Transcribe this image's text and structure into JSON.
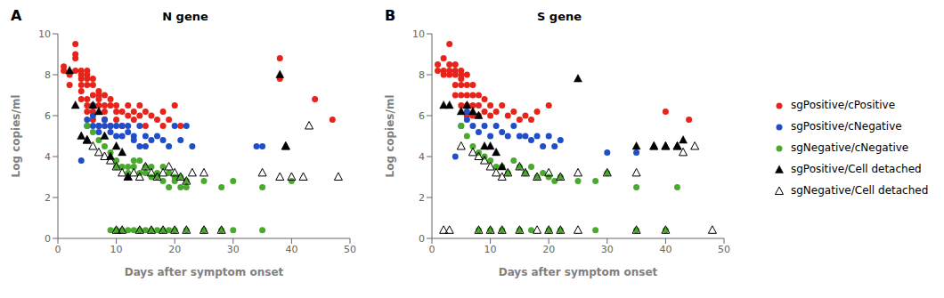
{
  "chart_data": [
    {
      "type": "scatter",
      "title": "N gene",
      "annotations": [
        "A"
      ],
      "x_label": "Days after symptom onset",
      "y_label": "Log copies/ml",
      "xlim": [
        0,
        50
      ],
      "ylim": [
        0,
        10
      ],
      "xticks": [
        0,
        10,
        20,
        30,
        40,
        50
      ],
      "yticks": [
        0,
        2,
        4,
        6,
        8,
        10
      ],
      "series": [
        {
          "name": "sgPositive/cPositive",
          "color": "#e8231a",
          "marker": "circle",
          "x": [
            1,
            1,
            2,
            2,
            2,
            3,
            3,
            3,
            3,
            4,
            4,
            4,
            4,
            4,
            4,
            5,
            5,
            5,
            5,
            5,
            5,
            5,
            6,
            6,
            6,
            6,
            6,
            6,
            7,
            7,
            7,
            7,
            7,
            8,
            8,
            8,
            8,
            9,
            9,
            9,
            10,
            10,
            10,
            11,
            11,
            12,
            12,
            13,
            13,
            14,
            14,
            15,
            15,
            16,
            17,
            18,
            18,
            19,
            20,
            21,
            38,
            38,
            44,
            47
          ],
          "values": [
            8.2,
            8.4,
            8.1,
            8.0,
            7.5,
            9.5,
            9.0,
            8.8,
            8.2,
            8.2,
            8.0,
            7.8,
            7.5,
            7.2,
            6.8,
            8.2,
            8.0,
            7.8,
            7.5,
            6.8,
            6.5,
            6.2,
            7.8,
            7.5,
            7.0,
            6.5,
            6.2,
            5.8,
            7.2,
            7.0,
            6.8,
            6.5,
            5.5,
            7.0,
            6.5,
            6.2,
            5.8,
            6.8,
            6.5,
            5.5,
            6.5,
            6.2,
            5.8,
            6.2,
            5.5,
            6.5,
            6.0,
            6.2,
            5.8,
            6.5,
            6.0,
            6.2,
            5.5,
            6.0,
            5.8,
            6.2,
            5.5,
            5.8,
            6.5,
            5.5,
            8.8,
            7.8,
            6.8,
            5.8
          ]
        },
        {
          "name": "sgPositive/cNegative",
          "color": "#1f4ec8",
          "marker": "circle",
          "x": [
            4,
            5,
            5,
            6,
            6,
            6,
            7,
            7,
            8,
            8,
            9,
            9,
            10,
            10,
            11,
            11,
            12,
            12,
            13,
            13,
            14,
            14,
            15,
            15,
            16,
            17,
            18,
            19,
            20,
            21,
            22,
            23,
            34,
            35
          ],
          "values": [
            3.8,
            5.8,
            5.5,
            6.5,
            6.0,
            5.5,
            5.5,
            5.2,
            5.8,
            5.5,
            5.5,
            5.2,
            5.5,
            5.0,
            5.5,
            5.0,
            5.5,
            5.2,
            5.0,
            4.8,
            5.5,
            4.5,
            5.0,
            4.5,
            4.8,
            5.0,
            4.8,
            4.5,
            5.5,
            4.8,
            5.5,
            4.5,
            4.5,
            4.5
          ]
        },
        {
          "name": "sgNegative/cNegative",
          "color": "#4aaa2e",
          "marker": "circle",
          "x": [
            5,
            6,
            7,
            8,
            9,
            10,
            10,
            11,
            12,
            12,
            13,
            13,
            14,
            14,
            15,
            15,
            16,
            16,
            17,
            17,
            18,
            18,
            19,
            19,
            20,
            20,
            21,
            21,
            22,
            22,
            25,
            28,
            30,
            35,
            40,
            9,
            10,
            10,
            11,
            12,
            13,
            14,
            15,
            16,
            17,
            18,
            19,
            20,
            22,
            25,
            28,
            30,
            35
          ],
          "values": [
            5.5,
            5.2,
            4.8,
            4.5,
            4.2,
            3.8,
            3.5,
            3.5,
            3.5,
            3.2,
            3.8,
            3.5,
            3.8,
            3.2,
            3.5,
            3.2,
            3.5,
            3.0,
            3.2,
            3.0,
            3.5,
            2.8,
            3.2,
            2.5,
            3.0,
            2.8,
            3.0,
            2.5,
            2.8,
            2.5,
            2.8,
            2.5,
            2.8,
            2.5,
            2.8,
            0.4,
            0.4,
            0.4,
            0.4,
            0.4,
            0.4,
            0.4,
            0.4,
            0.4,
            0.4,
            0.4,
            0.4,
            0.4,
            0.4,
            0.4,
            0.4,
            0.4,
            0.4
          ]
        },
        {
          "name": "sgPositive/Cell detached",
          "color": "#000000",
          "marker": "triangle",
          "x": [
            2,
            3,
            4,
            5,
            6,
            7,
            8,
            9,
            10,
            11,
            12,
            38,
            39
          ],
          "values": [
            8.2,
            6.5,
            5.0,
            4.8,
            6.5,
            6.2,
            5.0,
            4.0,
            4.5,
            4.2,
            3.0,
            8.0,
            4.5
          ]
        },
        {
          "name": "sgNegative/Cell detached",
          "color": "#000000",
          "marker": "open_triangle",
          "x": [
            5,
            6,
            7,
            8,
            9,
            10,
            11,
            12,
            13,
            14,
            15,
            16,
            17,
            18,
            19,
            20,
            21,
            22,
            23,
            25,
            35,
            38,
            39,
            40,
            42,
            43,
            48,
            10,
            11,
            14,
            16,
            18,
            20,
            22,
            25,
            28
          ],
          "values": [
            4.8,
            4.5,
            4.2,
            4.0,
            3.8,
            3.5,
            3.2,
            3.0,
            3.2,
            3.0,
            3.5,
            3.2,
            3.0,
            3.2,
            3.5,
            3.2,
            3.0,
            2.8,
            3.2,
            3.2,
            3.2,
            3.0,
            4.5,
            3.0,
            3.0,
            5.5,
            3.0,
            0.4,
            0.4,
            0.4,
            0.4,
            0.4,
            0.4,
            0.4,
            0.4,
            0.4
          ]
        }
      ]
    },
    {
      "type": "scatter",
      "title": "S gene",
      "annotations": [
        "B"
      ],
      "x_label": "Days after symptom onset",
      "y_label": "Log copies/ml",
      "xlim": [
        0,
        50
      ],
      "ylim": [
        0,
        10
      ],
      "xticks": [
        0,
        10,
        20,
        30,
        40,
        50
      ],
      "yticks": [
        0,
        2,
        4,
        6,
        8,
        10
      ],
      "legend": "right",
      "series": [
        {
          "name": "sgPositive/cPositive",
          "color": "#e8231a",
          "marker": "circle",
          "x": [
            1,
            1,
            2,
            2,
            2,
            3,
            3,
            3,
            3,
            4,
            4,
            4,
            4,
            4,
            5,
            5,
            5,
            5,
            5,
            5,
            6,
            6,
            6,
            6,
            6,
            7,
            7,
            7,
            7,
            8,
            8,
            8,
            9,
            9,
            10,
            10,
            11,
            12,
            13,
            14,
            15,
            16,
            17,
            18,
            20,
            40,
            44
          ],
          "values": [
            8.5,
            8.2,
            8.8,
            8.2,
            8.0,
            9.5,
            8.5,
            8.2,
            8.0,
            8.5,
            8.2,
            8.0,
            7.5,
            7.0,
            8.2,
            8.0,
            7.8,
            7.5,
            7.0,
            6.5,
            8.0,
            7.5,
            7.0,
            6.5,
            6.0,
            7.5,
            7.0,
            6.5,
            6.0,
            7.0,
            6.5,
            6.0,
            6.8,
            6.2,
            6.5,
            6.0,
            6.2,
            6.5,
            6.0,
            6.2,
            5.8,
            6.0,
            5.8,
            6.2,
            6.5,
            6.2,
            5.8
          ]
        },
        {
          "name": "sgPositive/cNegative",
          "color": "#1f4ec8",
          "marker": "circle",
          "x": [
            4,
            5,
            6,
            6,
            7,
            8,
            9,
            10,
            11,
            12,
            13,
            14,
            15,
            16,
            17,
            18,
            19,
            20,
            21,
            22,
            30,
            35
          ],
          "values": [
            4.0,
            5.5,
            6.2,
            5.8,
            5.5,
            5.2,
            5.5,
            5.0,
            5.5,
            5.2,
            5.0,
            5.5,
            5.0,
            5.0,
            4.8,
            5.0,
            4.5,
            5.0,
            4.5,
            4.8,
            4.2,
            4.2
          ]
        },
        {
          "name": "sgNegative/cNegative",
          "color": "#4aaa2e",
          "marker": "circle",
          "x": [
            5,
            6,
            7,
            8,
            9,
            10,
            11,
            12,
            13,
            14,
            15,
            16,
            17,
            18,
            19,
            20,
            21,
            22,
            25,
            28,
            30,
            35,
            42,
            8,
            10,
            12,
            15,
            17,
            20,
            22,
            28,
            35,
            40
          ],
          "values": [
            5.5,
            5.0,
            4.5,
            4.2,
            4.0,
            3.8,
            3.5,
            3.5,
            3.2,
            3.8,
            3.5,
            3.2,
            3.5,
            3.0,
            3.2,
            3.0,
            2.8,
            3.0,
            2.8,
            2.8,
            3.2,
            2.5,
            2.5,
            0.4,
            0.4,
            0.4,
            0.4,
            0.4,
            0.4,
            0.4,
            0.4,
            0.4,
            0.4
          ]
        },
        {
          "name": "sgPositive/Cell detached",
          "color": "#000000",
          "marker": "triangle",
          "x": [
            2,
            3,
            5,
            6,
            7,
            8,
            9,
            10,
            11,
            12,
            25,
            35,
            38,
            40,
            42,
            43
          ],
          "values": [
            6.5,
            6.5,
            6.2,
            6.5,
            6.2,
            6.0,
            4.5,
            4.5,
            4.2,
            3.5,
            7.8,
            4.5,
            4.5,
            4.5,
            4.5,
            4.8
          ]
        },
        {
          "name": "sgNegative/Cell detached",
          "color": "#000000",
          "marker": "open_triangle",
          "x": [
            5,
            7,
            8,
            9,
            10,
            11,
            12,
            13,
            15,
            16,
            18,
            20,
            22,
            25,
            30,
            35,
            38,
            40,
            42,
            43,
            45,
            48,
            2,
            3,
            8,
            10,
            12,
            15,
            18,
            20,
            22,
            25,
            35,
            40
          ],
          "values": [
            4.5,
            4.2,
            4.0,
            3.8,
            3.5,
            3.2,
            3.0,
            3.2,
            3.5,
            3.2,
            3.0,
            3.2,
            3.0,
            3.2,
            3.2,
            3.2,
            4.5,
            4.5,
            4.5,
            4.2,
            4.5,
            0.4,
            0.4,
            0.4,
            0.4,
            0.4,
            0.4,
            0.4,
            0.4,
            0.4,
            0.4,
            0.4,
            0.4,
            0.4
          ]
        }
      ]
    }
  ]
}
